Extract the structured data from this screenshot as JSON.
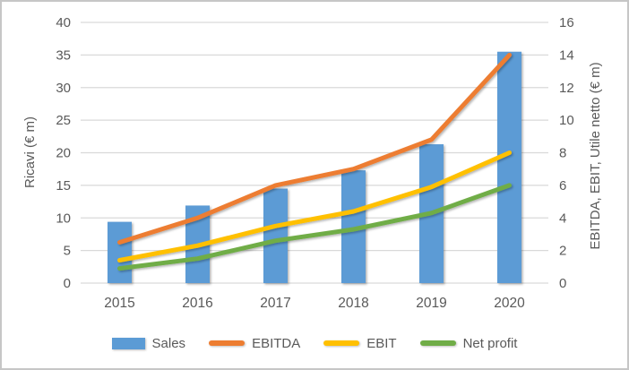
{
  "chart_data": {
    "type": "bar",
    "subtype": "combo-bar-line-dual-axis",
    "categories": [
      "2015",
      "2016",
      "2017",
      "2018",
      "2019",
      "2020"
    ],
    "series": [
      {
        "name": "Sales",
        "kind": "bar",
        "axis": "left",
        "color": "#5B9BD5",
        "values": [
          9.4,
          11.9,
          14.5,
          17.3,
          21.3,
          35.5
        ]
      },
      {
        "name": "EBITDA",
        "kind": "line",
        "axis": "right",
        "color": "#ED7D31",
        "values": [
          2.5,
          4.0,
          6.0,
          7.0,
          8.8,
          14.0
        ]
      },
      {
        "name": "EBIT",
        "kind": "line",
        "axis": "right",
        "color": "#FFC000",
        "values": [
          1.4,
          2.3,
          3.5,
          4.4,
          5.9,
          8.0
        ]
      },
      {
        "name": "Net profit",
        "kind": "line",
        "axis": "right",
        "color": "#70AD47",
        "values": [
          0.9,
          1.5,
          2.6,
          3.3,
          4.3,
          6.0
        ]
      }
    ],
    "title": "",
    "left_axis": {
      "label": "Ricavi (€ m)",
      "min": 0,
      "max": 40,
      "step": 5,
      "ticks": [
        0,
        5,
        10,
        15,
        20,
        25,
        30,
        35,
        40
      ]
    },
    "right_axis": {
      "label": "EBITDA, EBIT, Utile netto (€ m)",
      "min": 0,
      "max": 16,
      "step": 2,
      "ticks": [
        0,
        2,
        4,
        6,
        8,
        10,
        12,
        14,
        16
      ]
    },
    "grid": true,
    "legend_position": "bottom",
    "legend_labels": [
      "Sales",
      "EBITDA",
      "EBIT",
      "Net profit"
    ],
    "colors": {
      "grid": "#D9D9D9",
      "text": "#595959",
      "background": "#FFFFFF",
      "frame_border": "#C6C6C6"
    }
  }
}
